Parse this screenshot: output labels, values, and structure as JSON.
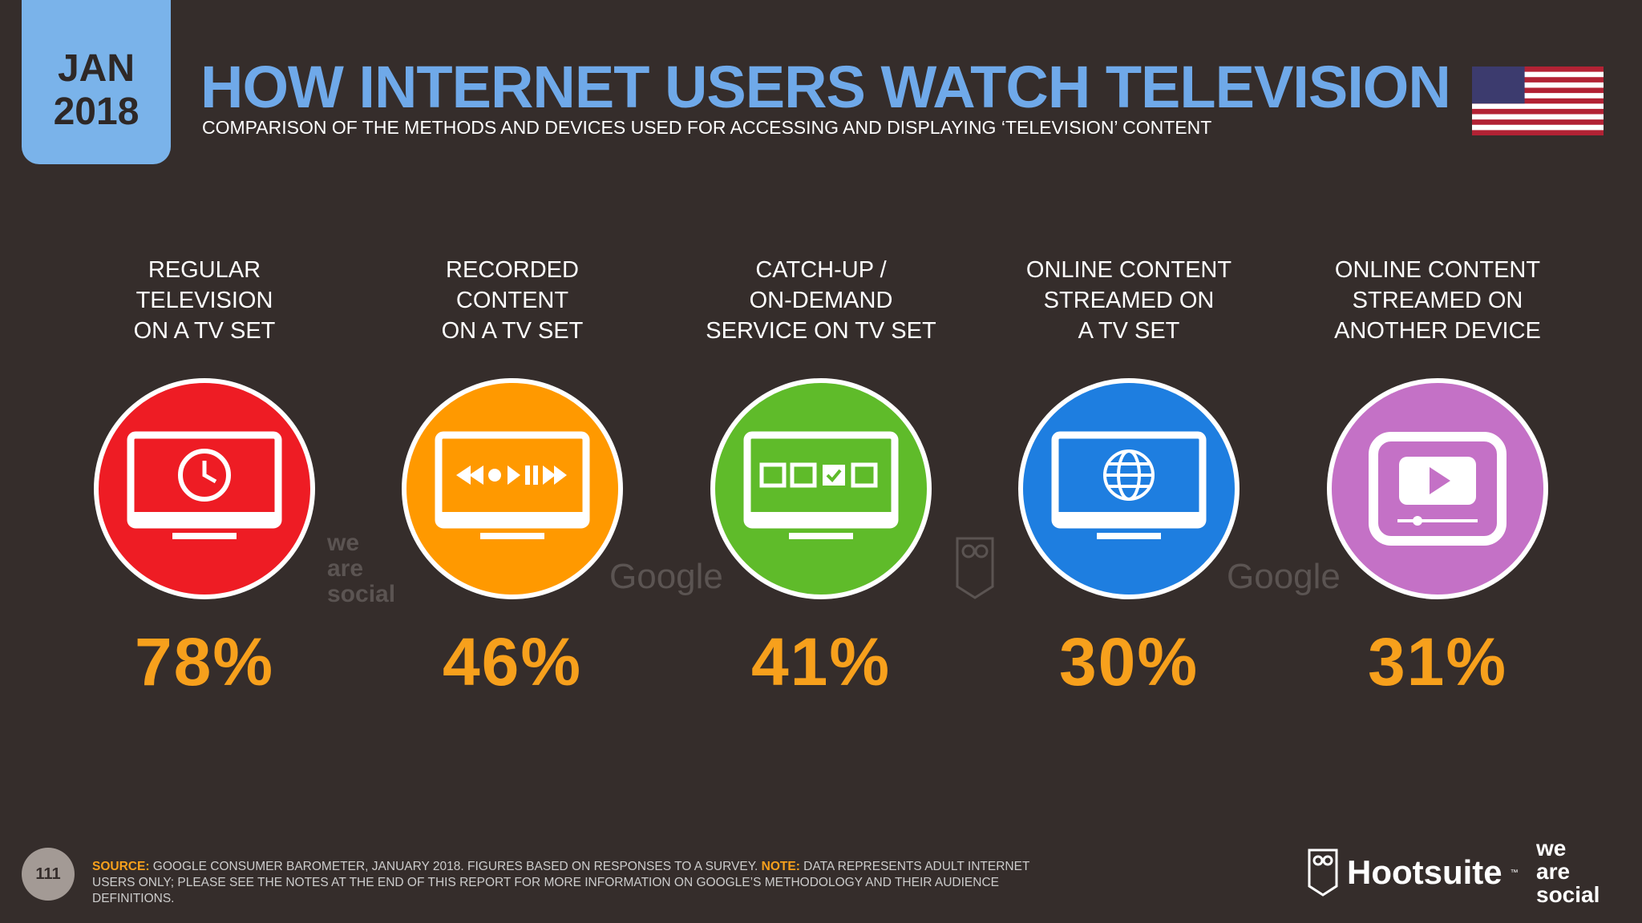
{
  "date": {
    "month": "JAN",
    "year": "2018"
  },
  "title": "HOW INTERNET USERS WATCH TELEVISION",
  "subtitle": "COMPARISON OF THE METHODS AND DEVICES USED FOR ACCESSING AND DISPLAYING ‘TELEVISION’ CONTENT",
  "items": [
    {
      "label": [
        "REGULAR",
        "TELEVISION",
        "ON A TV SET"
      ],
      "value": "78%",
      "color": "#ee1c24",
      "icon": "clock-tv-icon"
    },
    {
      "label": [
        "RECORDED",
        "CONTENT",
        "ON A TV SET"
      ],
      "value": "46%",
      "color": "#ff9900",
      "icon": "playback-tv-icon"
    },
    {
      "label": [
        "CATCH-UP /",
        "ON-DEMAND",
        "SERVICE ON TV SET"
      ],
      "value": "41%",
      "color": "#5fbb2a",
      "icon": "checklist-tv-icon"
    },
    {
      "label": [
        "ONLINE CONTENT",
        "STREAMED ON",
        "A TV SET"
      ],
      "value": "30%",
      "color": "#1e7ee0",
      "icon": "globe-tv-icon"
    },
    {
      "label": [
        "ONLINE CONTENT",
        "STREAMED ON",
        "ANOTHER DEVICE"
      ],
      "value": "31%",
      "color": "#c471c6",
      "icon": "video-player-icon"
    }
  ],
  "watermarks": {
    "was": [
      "we",
      "are",
      "social"
    ],
    "google": "Google"
  },
  "footer": {
    "page": "111",
    "source_label": "SOURCE:",
    "source_text": " GOOGLE CONSUMER BAROMETER, JANUARY 2018. FIGURES BASED ON RESPONSES TO A SURVEY. ",
    "note_label": "NOTE:",
    "note_text": " DATA REPRESENTS ADULT INTERNET USERS ONLY; PLEASE SEE THE NOTES AT THE END OF THIS REPORT FOR MORE INFORMATION ON GOOGLE’S METHODOLOGY AND THEIR AUDIENCE DEFINITIONS.",
    "hootsuite": "Hootsuite",
    "tm": "™",
    "was": [
      "we",
      "are",
      "social"
    ]
  }
}
